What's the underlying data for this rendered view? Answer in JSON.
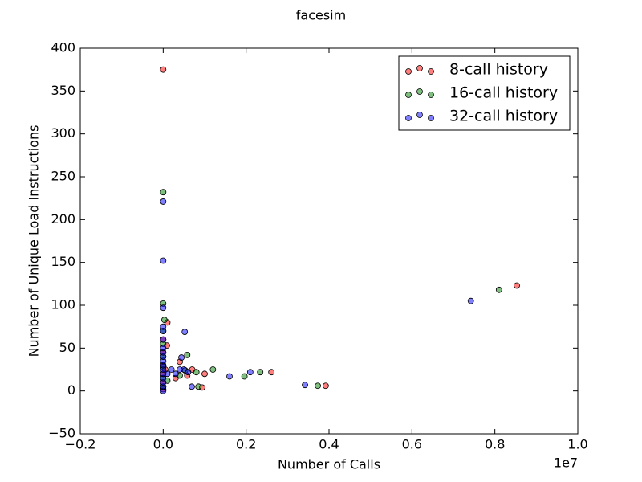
{
  "chart_data": {
    "type": "scatter",
    "title": "facesim",
    "xlabel": "Number of Calls",
    "ylabel": "Number of Unique Load Instructions",
    "x_offset_label": "1e7",
    "xlim": [
      -0.2,
      1.0
    ],
    "ylim": [
      -50,
      400
    ],
    "xticks": [
      {
        "value": -0.2,
        "label": "−0.2"
      },
      {
        "value": 0,
        "label": "0.0"
      },
      0.2,
      0.4,
      0.6,
      0.8,
      {
        "value": 1.0,
        "label": "1.0"
      }
    ],
    "yticks": [
      {
        "value": -50,
        "label": "−50"
      },
      0,
      50,
      100,
      150,
      200,
      250,
      300,
      350,
      400
    ],
    "legend": "upper right",
    "series": [
      {
        "name": "8-call history",
        "color": "#ff0000",
        "x": [
          0,
          0.853,
          0.392,
          0.261,
          0.094,
          0.058,
          0.04,
          0.009,
          0.01,
          0,
          0,
          0,
          0,
          0,
          0,
          0.005,
          0.03,
          0.07,
          0.1
        ],
        "y": [
          375,
          123,
          6,
          22,
          4,
          18,
          34,
          53,
          80,
          2,
          10,
          20,
          30,
          45,
          60,
          25,
          15,
          25,
          20
        ]
      },
      {
        "name": "16-call history",
        "color": "#008000",
        "x": [
          0.81,
          0.373,
          0.234,
          0.196,
          0.085,
          0.058,
          0.053,
          0,
          0,
          0.003,
          0,
          0,
          0,
          0,
          0,
          0,
          0.01,
          0.04,
          0.08,
          0.12
        ],
        "y": [
          118,
          6,
          22,
          17,
          5,
          42,
          24,
          232,
          102,
          83,
          5,
          15,
          28,
          40,
          55,
          70,
          12,
          18,
          22,
          25
        ]
      },
      {
        "name": "32-call history",
        "color": "#0000ff",
        "x": [
          0.742,
          0.342,
          0.21,
          0.16,
          0.069,
          0.052,
          0.044,
          0,
          0,
          0,
          0,
          0,
          0,
          0,
          0,
          0,
          0,
          0,
          0,
          0,
          0,
          0,
          0,
          0,
          0.01,
          0.02,
          0.03,
          0.04,
          0.05,
          0.06
        ],
        "y": [
          105,
          7,
          22,
          17,
          5,
          69,
          39,
          221,
          152,
          97,
          0,
          5,
          10,
          15,
          20,
          25,
          30,
          35,
          40,
          45,
          50,
          60,
          70,
          75,
          20,
          25,
          20,
          25,
          25,
          22
        ]
      }
    ]
  }
}
